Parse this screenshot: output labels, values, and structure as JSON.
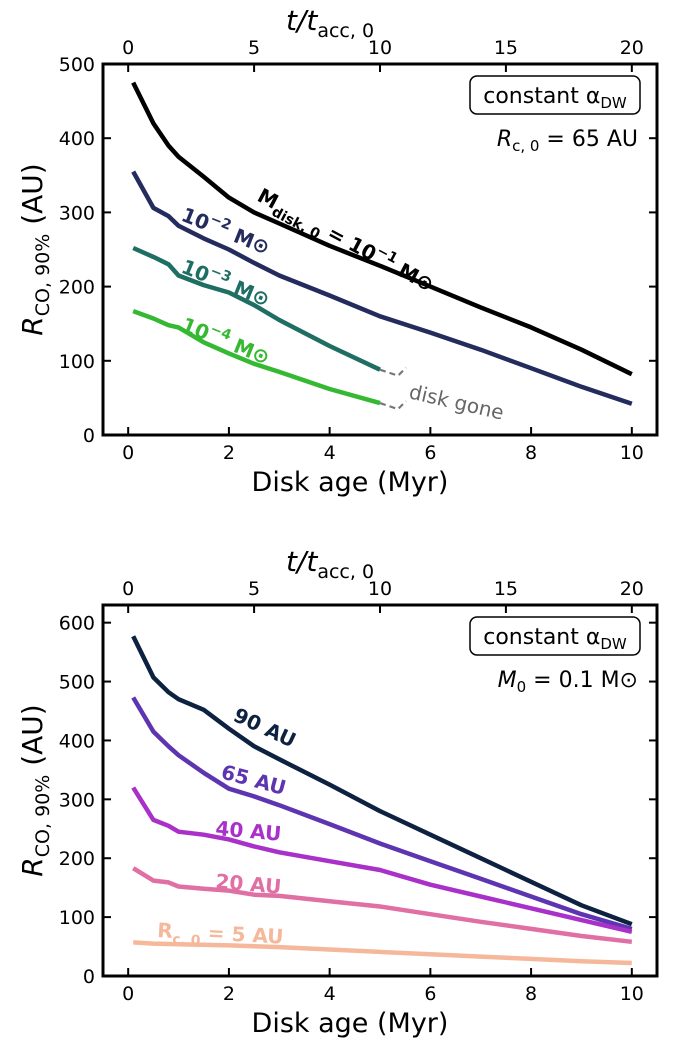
{
  "chart_data": [
    {
      "type": "line",
      "x_label": "Disk age (Myr)",
      "x_ticks": [
        "0",
        "2",
        "4",
        "6",
        "8",
        "10"
      ],
      "top_x_label_var": "t/t",
      "top_x_label_sub": "acc, 0",
      "top_x_ticks": [
        "0",
        "5",
        "10",
        "15",
        "20"
      ],
      "y_label_main": "R",
      "y_label_sub": "CO, 90%",
      "y_label_unit": "(AU)",
      "y_ticks": [
        "0",
        "100",
        "200",
        "300",
        "400",
        "500"
      ],
      "xlim": [
        -0.5,
        10.5
      ],
      "ylim": [
        0,
        500
      ],
      "top_axis_scale": 2,
      "box_label": "constant α",
      "box_label_sub": "DW",
      "param_label": "R",
      "param_label_sub": "c, 0",
      "param_value": " = 65 AU",
      "series": [
        {
          "color": "#000000",
          "label": "M",
          "label_sub": "disk, 0",
          "label_rest": " = 10",
          "label_exp": "−1",
          "label_unit": " M⊙",
          "x": [
            0.1,
            0.5,
            0.8,
            1.0,
            1.5,
            2.0,
            2.5,
            3.0,
            4.0,
            5.0,
            6.0,
            7.0,
            8.0,
            9.0,
            10.0
          ],
          "y": [
            475,
            420,
            390,
            375,
            348,
            320,
            300,
            285,
            255,
            228,
            200,
            172,
            145,
            115,
            82
          ]
        },
        {
          "color": "#242c5e",
          "label": "10",
          "label_exp": "−2",
          "label_unit": " M⊙",
          "x": [
            0.1,
            0.5,
            0.8,
            1.0,
            1.5,
            2.0,
            2.5,
            3.0,
            4.0,
            5.0,
            6.0,
            7.0,
            8.0,
            9.0,
            10.0
          ],
          "y": [
            355,
            306,
            295,
            282,
            265,
            250,
            232,
            215,
            188,
            160,
            138,
            115,
            90,
            65,
            42
          ]
        },
        {
          "color": "#1e6e63",
          "label": "10",
          "label_exp": "−3",
          "label_unit": " M⊙",
          "x": [
            0.1,
            0.5,
            0.8,
            1.0,
            1.5,
            2.0,
            2.5,
            3.0,
            4.0,
            5.0
          ],
          "y": [
            252,
            240,
            230,
            215,
            202,
            192,
            175,
            155,
            120,
            88
          ]
        },
        {
          "color": "#36b932",
          "label": "10",
          "label_exp": "−4",
          "label_unit": " M⊙",
          "x": [
            0.1,
            0.5,
            0.8,
            1.0,
            1.5,
            2.0,
            2.5,
            3.0,
            4.0,
            5.0
          ],
          "y": [
            167,
            157,
            148,
            145,
            125,
            110,
            96,
            85,
            62,
            43
          ]
        }
      ],
      "disk_gone_label": "disk gone"
    },
    {
      "type": "line",
      "x_label": "Disk age (Myr)",
      "x_ticks": [
        "0",
        "2",
        "4",
        "6",
        "8",
        "10"
      ],
      "top_x_label_var": "t/t",
      "top_x_label_sub": "acc, 0",
      "top_x_ticks": [
        "0",
        "5",
        "10",
        "15",
        "20"
      ],
      "y_label_main": "R",
      "y_label_sub": "CO, 90%",
      "y_label_unit": "(AU)",
      "y_ticks": [
        "0",
        "100",
        "200",
        "300",
        "400",
        "500",
        "600"
      ],
      "xlim": [
        -0.5,
        10.5
      ],
      "ylim": [
        0,
        630
      ],
      "top_axis_scale": 2,
      "box_label": "constant α",
      "box_label_sub": "DW",
      "param_label": "M",
      "param_label_sub": "0",
      "param_value": " = 0.1 M⊙",
      "series": [
        {
          "color": "#0d2240",
          "label": "90 AU",
          "x": [
            0.1,
            0.5,
            0.8,
            1.0,
            1.5,
            2.0,
            2.5,
            3.0,
            4.0,
            5.0,
            6.0,
            7.0,
            8.0,
            9.0,
            10.0
          ],
          "y": [
            577,
            507,
            482,
            470,
            452,
            420,
            390,
            368,
            325,
            280,
            240,
            200,
            160,
            120,
            88
          ]
        },
        {
          "color": "#5e35b1",
          "label": "65 AU",
          "x": [
            0.1,
            0.5,
            0.8,
            1.0,
            1.5,
            2.0,
            2.5,
            3.0,
            4.0,
            5.0,
            6.0,
            7.0,
            8.0,
            9.0,
            10.0
          ],
          "y": [
            473,
            415,
            390,
            375,
            345,
            318,
            305,
            290,
            258,
            225,
            195,
            165,
            135,
            105,
            80
          ]
        },
        {
          "color": "#a931c9",
          "label": "40 AU",
          "x": [
            0.1,
            0.5,
            0.8,
            1.0,
            1.5,
            2.0,
            2.5,
            3.0,
            4.0,
            5.0,
            6.0,
            7.0,
            8.0,
            9.0,
            10.0
          ],
          "y": [
            320,
            265,
            255,
            245,
            240,
            232,
            220,
            210,
            195,
            180,
            155,
            135,
            115,
            95,
            75
          ]
        },
        {
          "color": "#e06fa4",
          "label": "20 AU",
          "x": [
            0.1,
            0.5,
            0.8,
            1.0,
            1.5,
            2.0,
            2.5,
            3.0,
            4.0,
            5.0,
            6.0,
            7.0,
            8.0,
            9.0,
            10.0
          ],
          "y": [
            183,
            162,
            159,
            152,
            148,
            145,
            138,
            136,
            127,
            118,
            105,
            92,
            80,
            68,
            58
          ]
        },
        {
          "color": "#f6b89b",
          "label": "R",
          "label_sub": "c, 0",
          "label_rest": " = 5 AU",
          "x": [
            0.1,
            0.5,
            1.0,
            2.0,
            3.0,
            4.0,
            5.0,
            6.0,
            7.0,
            8.0,
            9.0,
            10.0
          ],
          "y": [
            57,
            55,
            54,
            52,
            49,
            45,
            41,
            37,
            33,
            29,
            25,
            22
          ]
        }
      ]
    }
  ]
}
